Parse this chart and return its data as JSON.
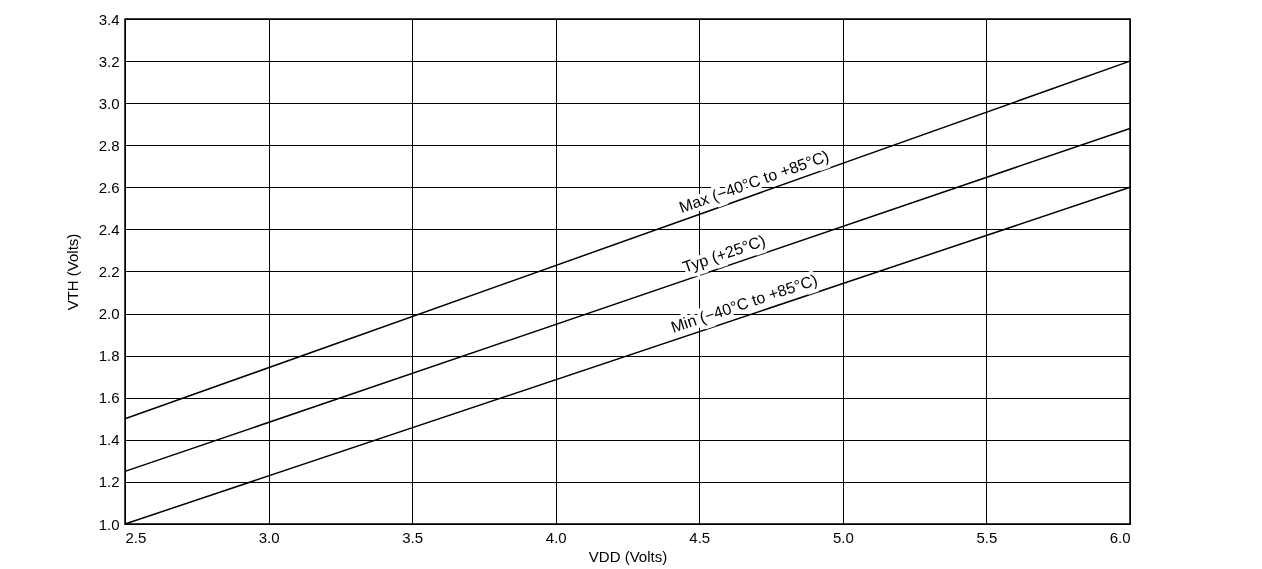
{
  "chart_data": {
    "type": "line",
    "xlabel": "VDD (Volts)",
    "ylabel": "VTH (Volts)",
    "xlim": [
      2.5,
      6.0
    ],
    "xticks": [
      {
        "value": 2.5,
        "label": "2.5"
      },
      {
        "value": 3,
        "label": "3.0"
      },
      {
        "value": 3.5,
        "label": "3.5"
      },
      {
        "value": 4,
        "label": "4.0"
      },
      {
        "value": 4.5,
        "label": "4.5"
      },
      {
        "value": 5,
        "label": "5.0"
      },
      {
        "value": 5.5,
        "label": "5.5"
      },
      {
        "value": 6,
        "label": "6.0"
      }
    ],
    "ylim": [
      1.0,
      3.4
    ],
    "yticks": [
      {
        "value": 1,
        "label": "1.0"
      },
      1.2,
      1.4,
      1.6,
      1.8,
      {
        "value": 2,
        "label": "2.0"
      },
      2.2,
      2.4,
      2.6,
      2.8,
      {
        "value": 3,
        "label": "3.0"
      },
      3.2,
      3.4
    ],
    "x": [
      2.5,
      6.0
    ],
    "grid": true,
    "legend": false,
    "marker": "none",
    "line_style": "solid",
    "series": [
      {
        "name": "Max (−40°C to +85°C)",
        "color": "#000000",
        "values": [
          1.5,
          3.2
        ]
      },
      {
        "name": "Typ (+25°C)",
        "color": "#000000",
        "values": [
          1.25,
          2.88
        ]
      },
      {
        "name": "Min (−40°C to +85°C)",
        "color": "#000000",
        "values": [
          1.0,
          2.6
        ]
      }
    ]
  }
}
